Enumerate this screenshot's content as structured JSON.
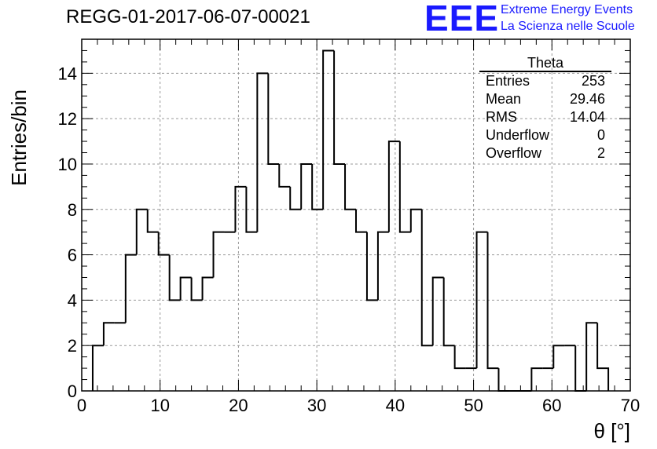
{
  "header": {
    "run_title": "REGG-01-2017-06-07-00021",
    "logo_text": "EEE",
    "org_line1": "Extreme Energy Events",
    "org_line2": "La Scienza nelle Scuole"
  },
  "stats": {
    "title": "Theta",
    "rows": [
      {
        "label": "Entries",
        "value": "253"
      },
      {
        "label": "Mean",
        "value": "29.46"
      },
      {
        "label": "RMS",
        "value": "14.04"
      },
      {
        "label": "Underflow",
        "value": "0"
      },
      {
        "label": "Overflow",
        "value": "2"
      }
    ]
  },
  "colors": {
    "logo": "#1a1aff",
    "line": "#000000",
    "grid": "#999999"
  },
  "chart_data": {
    "type": "bar",
    "style": "step-histogram",
    "xlabel": "θ [°]",
    "ylabel": "Entries/bin",
    "xlim": [
      0,
      70
    ],
    "ylim": [
      0,
      15.5
    ],
    "x_ticks": [
      0,
      10,
      20,
      30,
      40,
      50,
      60,
      70
    ],
    "y_ticks": [
      0,
      2,
      4,
      6,
      8,
      10,
      12,
      14
    ],
    "grid": true,
    "bin_low_edges": [
      1.4,
      2.8,
      4.2,
      5.6,
      7.0,
      8.4,
      9.8,
      11.2,
      12.6,
      14.0,
      15.4,
      16.8,
      18.2,
      19.6,
      21.0,
      22.4,
      23.8,
      25.2,
      26.6,
      28.0,
      29.4,
      30.8,
      32.2,
      33.6,
      35.0,
      36.4,
      37.8,
      39.2,
      40.6,
      42.0,
      43.4,
      44.8,
      46.2,
      47.6,
      49.0,
      50.4,
      51.8,
      53.2,
      54.6,
      56.0,
      57.4,
      58.8,
      60.2,
      61.6,
      63.0,
      64.4,
      65.8
    ],
    "bin_width": 1.4,
    "values": [
      2,
      3,
      3,
      6,
      8,
      7,
      6,
      4,
      5,
      4,
      5,
      7,
      7,
      9,
      7,
      14,
      10,
      9,
      8,
      10,
      8,
      15,
      10,
      8,
      7,
      4,
      7,
      11,
      7,
      8,
      2,
      5,
      2,
      1,
      1,
      7,
      1,
      0,
      0,
      0,
      1,
      1,
      2,
      2,
      0,
      3,
      1
    ]
  }
}
